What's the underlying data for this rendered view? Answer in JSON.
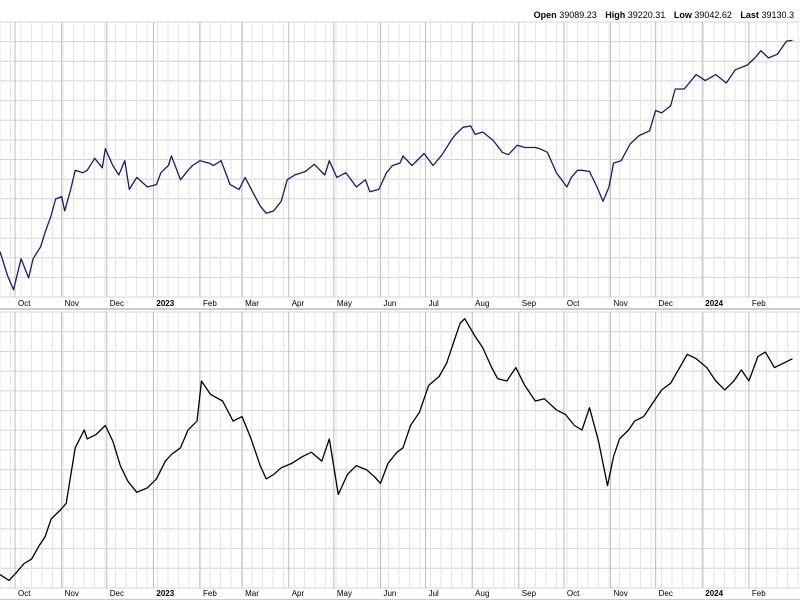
{
  "quote": {
    "open_label": "Open",
    "open": "39089.23",
    "high_label": "High",
    "high": "39220.31",
    "low_label": "Low",
    "low": "39042.62",
    "last_label": "Last",
    "last": "39130.3"
  },
  "colors": {
    "upper_line": "#1a1a6e",
    "lower_line": "#000000",
    "grid": "#d4d4d4",
    "separator": "#9a9a9a"
  },
  "chart_data": [
    {
      "type": "line",
      "panel": "upper",
      "x_ticks": [
        {
          "label": "Oct",
          "date": "2022-10-01"
        },
        {
          "label": "Nov",
          "date": "2022-11-01"
        },
        {
          "label": "Dec",
          "date": "2022-12-01"
        },
        {
          "label": "2023",
          "date": "2023-01-01",
          "bold": true
        },
        {
          "label": "Feb",
          "date": "2023-02-01"
        },
        {
          "label": "Mar",
          "date": "2023-03-01"
        },
        {
          "label": "Apr",
          "date": "2023-04-01"
        },
        {
          "label": "May",
          "date": "2023-05-01"
        },
        {
          "label": "Jun",
          "date": "2023-06-01"
        },
        {
          "label": "Jul",
          "date": "2023-07-01"
        },
        {
          "label": "Aug",
          "date": "2023-08-01"
        },
        {
          "label": "Sep",
          "date": "2023-09-01"
        },
        {
          "label": "Oct",
          "date": "2023-10-01"
        },
        {
          "label": "Nov",
          "date": "2023-11-01"
        },
        {
          "label": "Dec",
          "date": "2023-12-01"
        },
        {
          "label": "2024",
          "date": "2024-01-01",
          "bold": true
        },
        {
          "label": "Feb",
          "date": "2024-02-01"
        }
      ],
      "series": [
        {
          "points": [
            [
              "2022-09-21",
              30300
            ],
            [
              "2022-09-26",
              29300
            ],
            [
              "2022-09-30",
              28700
            ],
            [
              "2022-10-05",
              30000
            ],
            [
              "2022-10-10",
              29200
            ],
            [
              "2022-10-13",
              30000
            ],
            [
              "2022-10-18",
              30500
            ],
            [
              "2022-10-21",
              31100
            ],
            [
              "2022-10-25",
              31800
            ],
            [
              "2022-10-28",
              32500
            ],
            [
              "2022-11-01",
              32600
            ],
            [
              "2022-11-03",
              32000
            ],
            [
              "2022-11-07",
              32900
            ],
            [
              "2022-11-10",
              33700
            ],
            [
              "2022-11-15",
              33600
            ],
            [
              "2022-11-18",
              33700
            ],
            [
              "2022-11-23",
              34200
            ],
            [
              "2022-11-28",
              33800
            ],
            [
              "2022-11-30",
              34600
            ],
            [
              "2022-12-05",
              33900
            ],
            [
              "2022-12-09",
              33500
            ],
            [
              "2022-12-13",
              34100
            ],
            [
              "2022-12-16",
              32900
            ],
            [
              "2022-12-21",
              33400
            ],
            [
              "2022-12-28",
              33000
            ],
            [
              "2023-01-03",
              33100
            ],
            [
              "2023-01-06",
              33600
            ],
            [
              "2023-01-11",
              33900
            ],
            [
              "2023-01-13",
              34300
            ],
            [
              "2023-01-19",
              33300
            ],
            [
              "2023-01-24",
              33700
            ],
            [
              "2023-01-27",
              33900
            ],
            [
              "2023-02-01",
              34100
            ],
            [
              "2023-02-07",
              34000
            ],
            [
              "2023-02-10",
              33900
            ],
            [
              "2023-02-15",
              34100
            ],
            [
              "2023-02-21",
              33100
            ],
            [
              "2023-02-27",
              32900
            ],
            [
              "2023-03-03",
              33400
            ],
            [
              "2023-03-08",
              32800
            ],
            [
              "2023-03-13",
              32200
            ],
            [
              "2023-03-17",
              31900
            ],
            [
              "2023-03-22",
              32000
            ],
            [
              "2023-03-27",
              32400
            ],
            [
              "2023-03-31",
              33300
            ],
            [
              "2023-04-05",
              33500
            ],
            [
              "2023-04-12",
              33650
            ],
            [
              "2023-04-18",
              33950
            ],
            [
              "2023-04-25",
              33500
            ],
            [
              "2023-04-28",
              34100
            ],
            [
              "2023-05-03",
              33400
            ],
            [
              "2023-05-09",
              33600
            ],
            [
              "2023-05-16",
              33000
            ],
            [
              "2023-05-22",
              33300
            ],
            [
              "2023-05-25",
              32800
            ],
            [
              "2023-05-31",
              32900
            ],
            [
              "2023-06-05",
              33600
            ],
            [
              "2023-06-09",
              33900
            ],
            [
              "2023-06-14",
              34000
            ],
            [
              "2023-06-16",
              34300
            ],
            [
              "2023-06-22",
              33900
            ],
            [
              "2023-06-30",
              34400
            ],
            [
              "2023-07-06",
              33900
            ],
            [
              "2023-07-12",
              34350
            ],
            [
              "2023-07-18",
              34950
            ],
            [
              "2023-07-21",
              35200
            ],
            [
              "2023-07-26",
              35500
            ],
            [
              "2023-07-31",
              35550
            ],
            [
              "2023-08-03",
              35200
            ],
            [
              "2023-08-08",
              35300
            ],
            [
              "2023-08-15",
              34950
            ],
            [
              "2023-08-21",
              34450
            ],
            [
              "2023-08-25",
              34350
            ],
            [
              "2023-08-31",
              34750
            ],
            [
              "2023-09-05",
              34650
            ],
            [
              "2023-09-12",
              34650
            ],
            [
              "2023-09-15",
              34600
            ],
            [
              "2023-09-20",
              34450
            ],
            [
              "2023-09-26",
              33600
            ],
            [
              "2023-10-03",
              33000
            ],
            [
              "2023-10-06",
              33400
            ],
            [
              "2023-10-10",
              33700
            ],
            [
              "2023-10-13",
              33700
            ],
            [
              "2023-10-18",
              33650
            ],
            [
              "2023-10-23",
              33000
            ],
            [
              "2023-10-27",
              32400
            ],
            [
              "2023-10-31",
              33000
            ],
            [
              "2023-11-03",
              34000
            ],
            [
              "2023-11-08",
              34100
            ],
            [
              "2023-11-14",
              34800
            ],
            [
              "2023-11-20",
              35150
            ],
            [
              "2023-11-27",
              35350
            ],
            [
              "2023-12-01",
              36200
            ],
            [
              "2023-12-05",
              36100
            ],
            [
              "2023-12-11",
              36400
            ],
            [
              "2023-12-14",
              37100
            ],
            [
              "2023-12-20",
              37100
            ],
            [
              "2023-12-28",
              37700
            ],
            [
              "2024-01-03",
              37450
            ],
            [
              "2024-01-10",
              37700
            ],
            [
              "2024-01-17",
              37350
            ],
            [
              "2024-01-23",
              37900
            ],
            [
              "2024-01-31",
              38100
            ],
            [
              "2024-02-05",
              38400
            ],
            [
              "2024-02-09",
              38700
            ],
            [
              "2024-02-14",
              38400
            ],
            [
              "2024-02-20",
              38550
            ],
            [
              "2024-02-26",
              39100
            ],
            [
              "2024-03-01",
              39130
            ]
          ]
        }
      ]
    },
    {
      "type": "line",
      "panel": "lower",
      "x_ticks": [
        {
          "label": "Oct",
          "date": "2022-10-01"
        },
        {
          "label": "Nov",
          "date": "2022-11-01"
        },
        {
          "label": "Dec",
          "date": "2022-12-01"
        },
        {
          "label": "2023",
          "date": "2023-01-01",
          "bold": true
        },
        {
          "label": "Feb",
          "date": "2023-02-01"
        },
        {
          "label": "Mar",
          "date": "2023-03-01"
        },
        {
          "label": "Apr",
          "date": "2023-04-01"
        },
        {
          "label": "May",
          "date": "2023-05-01"
        },
        {
          "label": "Jun",
          "date": "2023-06-01"
        },
        {
          "label": "Jul",
          "date": "2023-07-01"
        },
        {
          "label": "Aug",
          "date": "2023-08-01"
        },
        {
          "label": "Sep",
          "date": "2023-09-01"
        },
        {
          "label": "Oct",
          "date": "2023-10-01"
        },
        {
          "label": "Nov",
          "date": "2023-11-01"
        },
        {
          "label": "Dec",
          "date": "2023-12-01"
        },
        {
          "label": "2024",
          "date": "2024-01-01",
          "bold": true
        },
        {
          "label": "Feb",
          "date": "2024-02-01"
        }
      ],
      "series": [
        {
          "points": [
            [
              "2022-09-21",
              11.5
            ],
            [
              "2022-09-27",
              10.2
            ],
            [
              "2022-10-02",
              12.0
            ],
            [
              "2022-10-07",
              14.0
            ],
            [
              "2022-10-12",
              15.0
            ],
            [
              "2022-10-17",
              18.0
            ],
            [
              "2022-10-21",
              20.0
            ],
            [
              "2022-10-25",
              24.0
            ],
            [
              "2022-10-31",
              26.0
            ],
            [
              "2022-11-04",
              27.5
            ],
            [
              "2022-11-10",
              40.0
            ],
            [
              "2022-11-16",
              44.0
            ],
            [
              "2022-11-18",
              42.0
            ],
            [
              "2022-11-24",
              43.0
            ],
            [
              "2022-11-30",
              45.0
            ],
            [
              "2022-12-05",
              41.5
            ],
            [
              "2022-12-10",
              36.0
            ],
            [
              "2022-12-15",
              32.5
            ],
            [
              "2022-12-21",
              30.0
            ],
            [
              "2022-12-28",
              31.0
            ],
            [
              "2023-01-03",
              33.0
            ],
            [
              "2023-01-09",
              37.0
            ],
            [
              "2023-01-13",
              38.5
            ],
            [
              "2023-01-19",
              40.0
            ],
            [
              "2023-01-24",
              44.0
            ],
            [
              "2023-01-30",
              46.0
            ],
            [
              "2023-02-02",
              55.0
            ],
            [
              "2023-02-08",
              52.0
            ],
            [
              "2023-02-16",
              50.5
            ],
            [
              "2023-02-23",
              46.0
            ],
            [
              "2023-03-01",
              47.0
            ],
            [
              "2023-03-07",
              42.0
            ],
            [
              "2023-03-13",
              36.0
            ],
            [
              "2023-03-17",
              33.0
            ],
            [
              "2023-03-22",
              34.0
            ],
            [
              "2023-03-27",
              35.5
            ],
            [
              "2023-04-03",
              36.5
            ],
            [
              "2023-04-10",
              38.0
            ],
            [
              "2023-04-16",
              39.0
            ],
            [
              "2023-04-23",
              37.0
            ],
            [
              "2023-04-28",
              42.0
            ],
            [
              "2023-05-04",
              29.5
            ],
            [
              "2023-05-10",
              34.0
            ],
            [
              "2023-05-16",
              36.0
            ],
            [
              "2023-05-23",
              35.0
            ],
            [
              "2023-05-28",
              33.5
            ],
            [
              "2023-06-01",
              32.0
            ],
            [
              "2023-06-06",
              36.5
            ],
            [
              "2023-06-12",
              39.0
            ],
            [
              "2023-06-16",
              40.0
            ],
            [
              "2023-06-21",
              45.0
            ],
            [
              "2023-06-27",
              48.0
            ],
            [
              "2023-07-03",
              54.0
            ],
            [
              "2023-07-10",
              56.0
            ],
            [
              "2023-07-15",
              59.0
            ],
            [
              "2023-07-21",
              65.0
            ],
            [
              "2023-07-24",
              68.0
            ],
            [
              "2023-07-27",
              69.0
            ],
            [
              "2023-08-03",
              65.0
            ],
            [
              "2023-08-08",
              62.5
            ],
            [
              "2023-08-14",
              58.0
            ],
            [
              "2023-08-18",
              55.5
            ],
            [
              "2023-08-24",
              55.0
            ],
            [
              "2023-08-30",
              58.0
            ],
            [
              "2023-09-05",
              54.0
            ],
            [
              "2023-09-12",
              50.5
            ],
            [
              "2023-09-18",
              51.0
            ],
            [
              "2023-09-26",
              48.5
            ],
            [
              "2023-10-02",
              47.5
            ],
            [
              "2023-10-08",
              45.0
            ],
            [
              "2023-10-13",
              44.0
            ],
            [
              "2023-10-18",
              49.0
            ],
            [
              "2023-10-24",
              41.5
            ],
            [
              "2023-10-30",
              31.5
            ],
            [
              "2023-11-03",
              38.0
            ],
            [
              "2023-11-07",
              42.0
            ],
            [
              "2023-11-13",
              44.0
            ],
            [
              "2023-11-17",
              46.0
            ],
            [
              "2023-11-23",
              47.0
            ],
            [
              "2023-11-29",
              50.0
            ],
            [
              "2023-12-05",
              53.0
            ],
            [
              "2023-12-11",
              54.5
            ],
            [
              "2023-12-17",
              58.0
            ],
            [
              "2023-12-22",
              61.0
            ],
            [
              "2023-12-28",
              60.0
            ],
            [
              "2024-01-04",
              58.0
            ],
            [
              "2024-01-10",
              55.0
            ],
            [
              "2024-01-16",
              53.0
            ],
            [
              "2024-01-22",
              55.0
            ],
            [
              "2024-01-27",
              57.5
            ],
            [
              "2024-02-01",
              55.0
            ],
            [
              "2024-02-07",
              60.5
            ],
            [
              "2024-02-12",
              61.5
            ],
            [
              "2024-02-18",
              58.0
            ],
            [
              "2024-02-24",
              59.0
            ],
            [
              "2024-03-01",
              60.0
            ]
          ]
        }
      ]
    }
  ]
}
